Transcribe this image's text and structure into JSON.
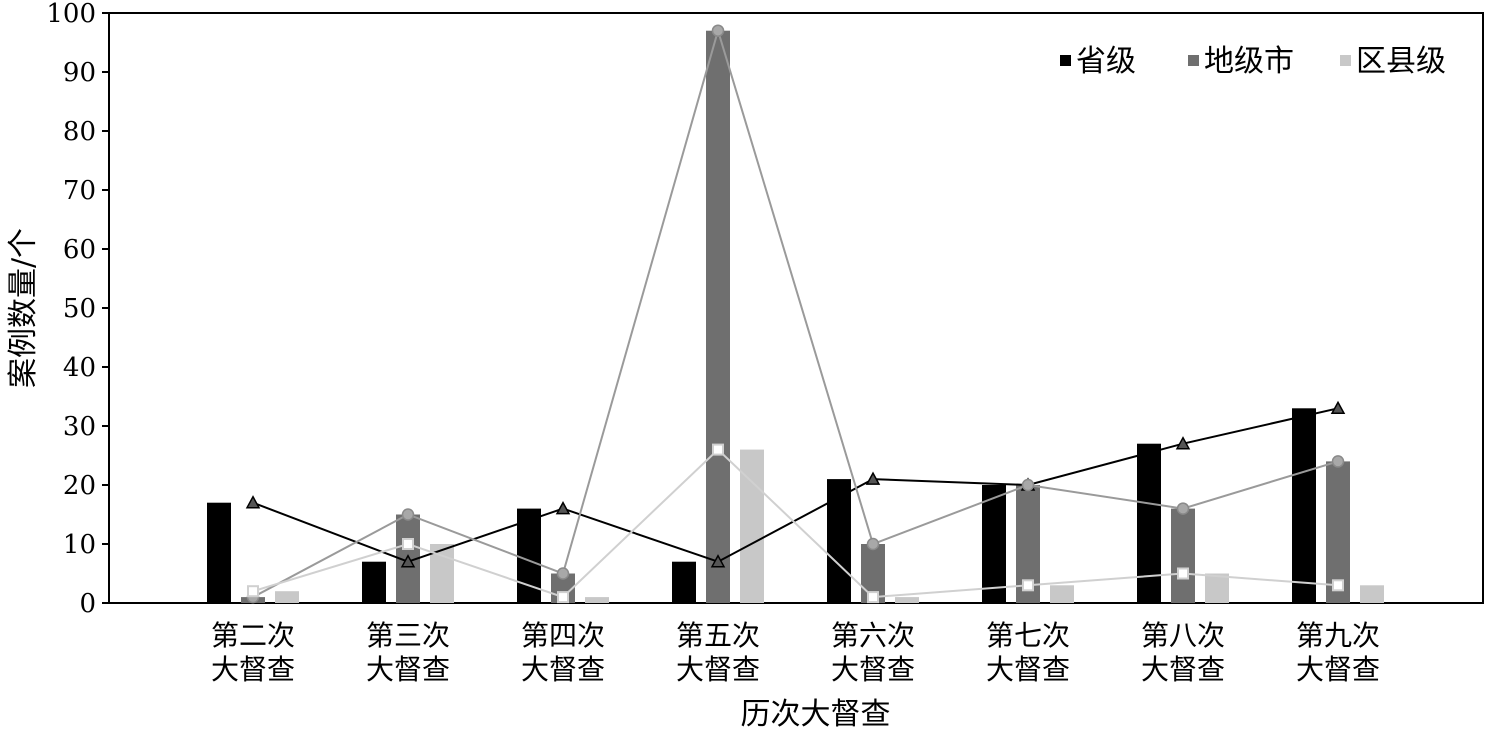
{
  "chart_data": {
    "type": "bar",
    "title": "",
    "xlabel": "历次大督查",
    "ylabel": "案例数量/个",
    "ylim": [
      0,
      100
    ],
    "yticks": [
      0,
      10,
      20,
      30,
      40,
      50,
      60,
      70,
      80,
      90,
      100
    ],
    "grid": false,
    "legend_position": "top-right",
    "categories": [
      [
        "第二次",
        "大督查"
      ],
      [
        "第三次",
        "大督查"
      ],
      [
        "第四次",
        "大督查"
      ],
      [
        "第五次",
        "大督查"
      ],
      [
        "第六次",
        "大督查"
      ],
      [
        "第七次",
        "大督查"
      ],
      [
        "第八次",
        "大督查"
      ],
      [
        "第九次",
        "大督查"
      ]
    ],
    "series": [
      {
        "name": "省级",
        "color": "#000000",
        "marker": "triangle",
        "values": [
          17,
          7,
          16,
          7,
          21,
          20,
          27,
          33
        ]
      },
      {
        "name": "地级市",
        "color": "#6f6f6f",
        "line_color": "#9a9a9a",
        "marker": "circle",
        "values": [
          1,
          15,
          5,
          97,
          10,
          20,
          16,
          24
        ]
      },
      {
        "name": "区县级",
        "color": "#c8c8c8",
        "line_color": "#d0d0d0",
        "marker": "square",
        "values": [
          2,
          10,
          1,
          26,
          1,
          3,
          5,
          3
        ]
      }
    ]
  }
}
